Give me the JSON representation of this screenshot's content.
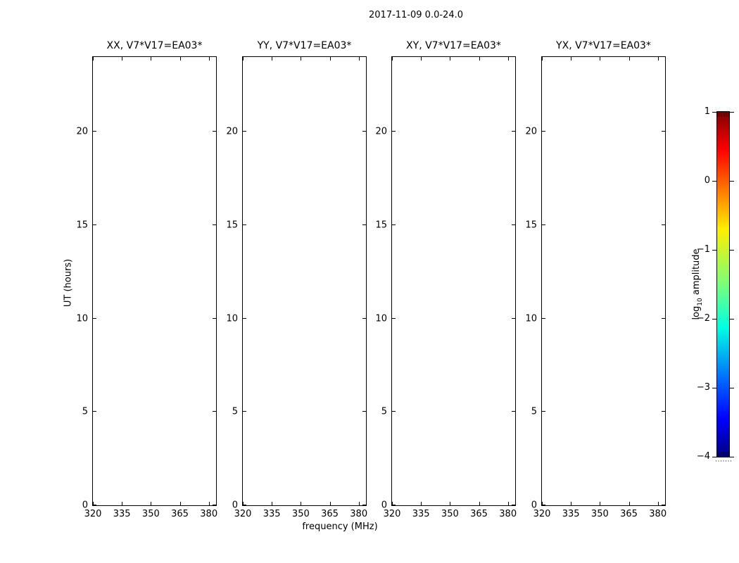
{
  "figure": {
    "suptitle": "2017-11-09 0.0-24.0",
    "xlabel": "frequency (MHz)",
    "ylabel": "UT (hours)",
    "background": "#ffffff",
    "frame_color": "#000000"
  },
  "panels": [
    {
      "title": "XX, V7*V17=EA03*"
    },
    {
      "title": "YY, V7*V17=EA03*"
    },
    {
      "title": "XY, V7*V17=EA03*"
    },
    {
      "title": "YX, V7*V17=EA03*"
    }
  ],
  "axes": {
    "x": {
      "ticks": [
        "320",
        "335",
        "350",
        "365",
        "380"
      ],
      "values": [
        320,
        335,
        350,
        365,
        380
      ],
      "min": 320,
      "max": 383.75
    },
    "y": {
      "ticks": [
        "0",
        "5",
        "10",
        "15",
        "20"
      ],
      "values": [
        0,
        5,
        10,
        15,
        20
      ],
      "min": 0,
      "max": 24
    }
  },
  "colorbar": {
    "label_prefix": "log",
    "label_sub": "10",
    "label_suffix": " amplitude",
    "ticks": [
      "1",
      "0",
      "−1",
      "−2",
      "−3",
      "−4"
    ],
    "values": [
      1,
      0,
      -1,
      -2,
      -3,
      -4
    ],
    "min": -4,
    "max": 1,
    "colormap": "jet",
    "gradient_stops": [
      [
        "#800000",
        0
      ],
      [
        "#ff0000",
        11
      ],
      [
        "#ffee00",
        34
      ],
      [
        "#7aff7a",
        50
      ],
      [
        "#00ffe3",
        62.5
      ],
      [
        "#0066ff",
        78
      ],
      [
        "#0000ff",
        89
      ],
      [
        "#000080",
        100
      ]
    ]
  },
  "chart_data": [
    {
      "type": "heatmap",
      "title": "XX, V7*V17=EA03*",
      "xlabel": "frequency (MHz)",
      "ylabel": "UT (hours)",
      "xlim": [
        320,
        383.75
      ],
      "ylim": [
        0,
        24
      ],
      "xticks": [
        320,
        335,
        350,
        365,
        380
      ],
      "yticks": [
        0,
        5,
        10,
        15,
        20
      ],
      "values": [],
      "grid": false
    },
    {
      "type": "heatmap",
      "title": "YY, V7*V17=EA03*",
      "xlabel": "frequency (MHz)",
      "ylabel": "UT (hours)",
      "xlim": [
        320,
        383.75
      ],
      "ylim": [
        0,
        24
      ],
      "xticks": [
        320,
        335,
        350,
        365,
        380
      ],
      "yticks": [
        0,
        5,
        10,
        15,
        20
      ],
      "values": [],
      "grid": false
    },
    {
      "type": "heatmap",
      "title": "XY, V7*V17=EA03*",
      "xlabel": "frequency (MHz)",
      "ylabel": "UT (hours)",
      "xlim": [
        320,
        383.75
      ],
      "ylim": [
        0,
        24
      ],
      "xticks": [
        320,
        335,
        350,
        365,
        380
      ],
      "yticks": [
        0,
        5,
        10,
        15,
        20
      ],
      "values": [],
      "grid": false
    },
    {
      "type": "heatmap",
      "title": "YX, V7*V17=EA03*",
      "xlabel": "frequency (MHz)",
      "ylabel": "UT (hours)",
      "xlim": [
        320,
        383.75
      ],
      "ylim": [
        0,
        24
      ],
      "xticks": [
        320,
        335,
        350,
        365,
        380
      ],
      "yticks": [
        0,
        5,
        10,
        15,
        20
      ],
      "values": [],
      "grid": false
    },
    {
      "type": "colorbar",
      "label": "log10 amplitude",
      "ticks": [
        1,
        0,
        -1,
        -2,
        -3,
        -4
      ],
      "range": [
        -4,
        1
      ],
      "colormap": "jet",
      "legend_position": "right"
    }
  ]
}
